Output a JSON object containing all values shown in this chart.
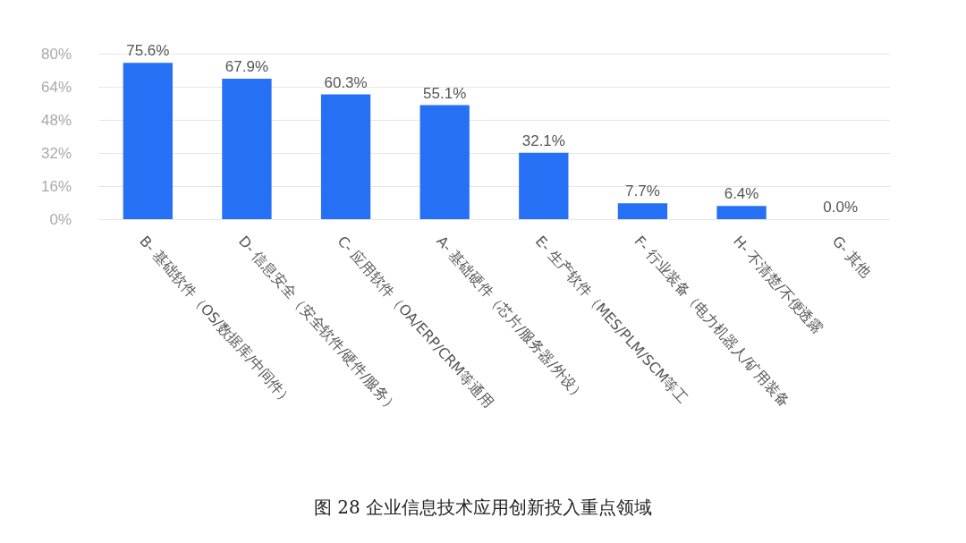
{
  "chart_data": {
    "type": "bar",
    "title": "图 28 企业信息技术应用创新投入重点领域",
    "categories": [
      "B- 基础软件（OS/数据库/中间件）",
      "D- 信息安全（安全软件/硬件/服务）",
      "C- 应用软件（OA/ERP/CRM等通用",
      "A- 基础硬件（芯片/服务器/外设）",
      "E- 生产软件（MES/PLM/SCM等工",
      "F- 行业装备（电力机器人/矿用装备",
      "H- 不清楚/不便透露",
      "G- 其他"
    ],
    "values": [
      75.6,
      67.9,
      60.3,
      55.1,
      32.1,
      7.7,
      6.4,
      0.0
    ],
    "value_labels": [
      "75.6%",
      "67.9%",
      "60.3%",
      "55.1%",
      "32.1%",
      "7.7%",
      "6.4%",
      "0.0%"
    ],
    "color": "#2670f5",
    "ylim": [
      0,
      80
    ],
    "yticks": [
      {
        "value": 0,
        "label": "0%"
      },
      {
        "value": 16,
        "label": "16%"
      },
      {
        "value": 32,
        "label": "32%"
      },
      {
        "value": 48,
        "label": "48%"
      },
      {
        "value": 64,
        "label": "64%"
      },
      {
        "value": 80,
        "label": "80%"
      }
    ],
    "grid": "y"
  }
}
